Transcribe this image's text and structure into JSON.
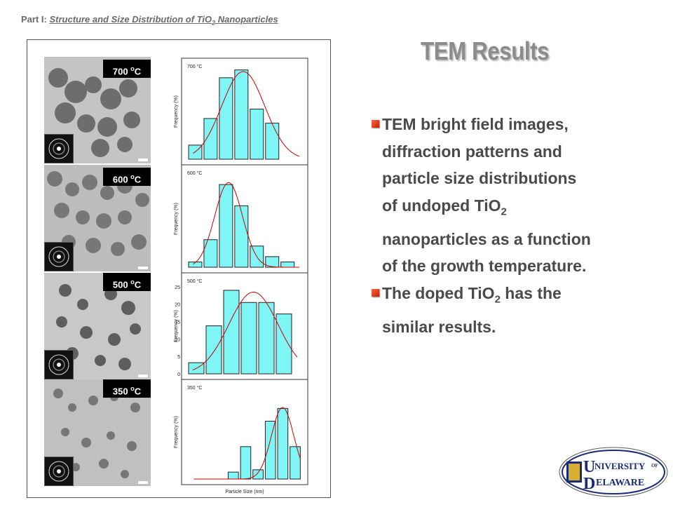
{
  "header": {
    "prefix": "Part I: ",
    "subtitle_main": "Structure and Size Distribution of TiO",
    "subtitle_sub": "2",
    "subtitle_end": " Nanoparticles"
  },
  "title": "TEM Results",
  "bullets": [
    {
      "parts": [
        "TEM bright field images,",
        "diffraction patterns and",
        "particle size  distributions",
        "of undoped TiO|2",
        "nanoparticles as a  function",
        "of the growth temperature."
      ]
    },
    {
      "parts": [
        "The doped TiO|2| has the",
        "similar results."
      ]
    }
  ],
  "colors": {
    "bar_fill": "#7ff5f5",
    "fit_line": "#cc0000",
    "bullet_marker": "#e0441a",
    "logo_blue": "#1a2b7a",
    "logo_gold": "#d8b030"
  },
  "panels": [
    {
      "label": "700 °C",
      "label_num": "700 ",
      "label_sup": "o",
      "label_unit": "C",
      "inset_text": "700 °C"
    },
    {
      "label": "600 °C",
      "label_num": "600 ",
      "label_sup": "o",
      "label_unit": "C",
      "inset_text": "600 °C"
    },
    {
      "label": "500 °C",
      "label_num": "500 ",
      "label_sup": "o",
      "label_unit": "C",
      "inset_text": "500 °C"
    },
    {
      "label": "350 °C",
      "label_num": "350 ",
      "label_sup": "o",
      "label_unit": "C",
      "inset_text": "350 °C"
    }
  ],
  "chart_data": [
    {
      "type": "bar",
      "title": "700 °C",
      "ylabel": "Frequency (%)",
      "xlabel": "",
      "ylim": [
        0,
        30
      ],
      "x_bins": [
        1,
        2,
        3,
        4,
        5,
        6,
        7
      ],
      "values": [
        4.5,
        13,
        26,
        28.5,
        16,
        11.5,
        0
      ],
      "fit": "gaussian",
      "fit_center": 4.05,
      "fit_peak": 28
    },
    {
      "type": "bar",
      "title": "600 °C",
      "ylabel": "Frequency (%)",
      "xlabel": "",
      "ylim": [
        0,
        45
      ],
      "x_bins": [
        1,
        2,
        3,
        4,
        5,
        6,
        7
      ],
      "values": [
        2.5,
        13,
        39,
        29,
        10,
        5,
        2.5
      ],
      "fit": "gaussian",
      "fit_center": 3.1,
      "fit_peak": 40
    },
    {
      "type": "bar",
      "title": "500 °C",
      "ylabel": "Frequency (%)",
      "xlabel": "",
      "ylim": [
        0,
        27
      ],
      "yticks": [
        0,
        5,
        10,
        15,
        20,
        25
      ],
      "x_bins": [
        1,
        2,
        3,
        4,
        5,
        6
      ],
      "values": [
        3.2,
        13.8,
        24,
        20.5,
        20.5,
        17.2
      ],
      "fit": "gaussian",
      "fit_center": 4.2,
      "fit_peak": 23.5
    },
    {
      "type": "bar",
      "title": "350 °C",
      "ylabel": "Frequency (%)",
      "xlabel": "Particle Size (nm)",
      "ylim": [
        0,
        40
      ],
      "x_bins": [
        1,
        2,
        3,
        4,
        5,
        6,
        7,
        8,
        9
      ],
      "values": [
        0,
        0,
        0,
        3,
        14,
        4,
        25,
        30.5,
        14
      ],
      "fit": "gaussian",
      "fit_center": 8.1,
      "fit_peak": 31
    }
  ],
  "logo": {
    "line1_cap": "U",
    "line1": "NIVERSITY",
    "line1_of": "OF",
    "line2_cap": "D",
    "line2": "ELAWARE"
  }
}
